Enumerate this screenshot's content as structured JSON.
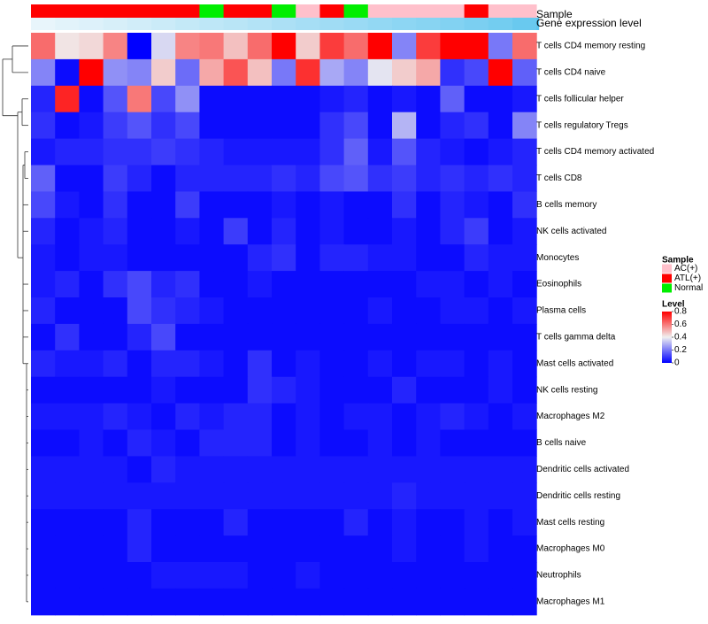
{
  "chart_data": {
    "type": "heatmap",
    "title": "",
    "annotation_tracks": [
      {
        "name": "Sample",
        "label": "Sample"
      },
      {
        "name": "Gene expression level",
        "label": "Gene expression level"
      }
    ],
    "sample_groups": [
      "ATL(+)",
      "ATL(+)",
      "ATL(+)",
      "ATL(+)",
      "ATL(+)",
      "ATL(+)",
      "ATL(+)",
      "Normal",
      "ATL(+)",
      "ATL(+)",
      "Normal",
      "AC(+)",
      "ATL(+)",
      "Normal",
      "AC(+)",
      "AC(+)",
      "AC(+)",
      "AC(+)",
      "ATL(+)",
      "AC(+)",
      "AC(+)"
    ],
    "expression_level": [
      0.02,
      0.06,
      0.1,
      0.14,
      0.18,
      0.22,
      0.27,
      0.31,
      0.35,
      0.39,
      0.44,
      0.48,
      0.52,
      0.56,
      0.61,
      0.65,
      0.69,
      0.73,
      0.78,
      0.83,
      0.9
    ],
    "rows": [
      "T cells CD4 memory resting",
      "T cells CD4 naive",
      "T cells follicular helper",
      "T cells regulatory  Tregs",
      "T cells CD4 memory activated",
      "T cells CD8",
      "B cells memory",
      "NK cells activated",
      "Monocytes",
      "Eosinophils",
      "Plasma cells",
      "T cells gamma delta",
      "Mast cells activated",
      "NK cells resting",
      "Macrophages M2",
      "B cells naive",
      "Dendritic cells activated",
      "Dendritic cells resting",
      "Mast cells resting",
      "Macrophages M0",
      "Neutrophils",
      "Macrophages M1"
    ],
    "values": [
      [
        0.62,
        0.42,
        0.44,
        0.58,
        0.0,
        0.36,
        0.58,
        0.6,
        0.48,
        0.62,
        0.8,
        0.46,
        0.7,
        0.62,
        0.82,
        0.22,
        0.7,
        0.8,
        0.82,
        0.2,
        0.62
      ],
      [
        0.22,
        0.02,
        0.8,
        0.24,
        0.22,
        0.46,
        0.18,
        0.52,
        0.66,
        0.48,
        0.2,
        0.72,
        0.28,
        0.22,
        0.38,
        0.46,
        0.52,
        0.08,
        0.12,
        0.8,
        0.16
      ],
      [
        0.06,
        0.74,
        0.02,
        0.14,
        0.6,
        0.12,
        0.24,
        0.02,
        0.02,
        0.02,
        0.02,
        0.02,
        0.04,
        0.06,
        0.02,
        0.04,
        0.02,
        0.16,
        0.02,
        0.02,
        0.04
      ],
      [
        0.08,
        0.02,
        0.04,
        0.1,
        0.14,
        0.08,
        0.12,
        0.02,
        0.02,
        0.02,
        0.02,
        0.02,
        0.08,
        0.12,
        0.02,
        0.3,
        0.02,
        0.06,
        0.08,
        0.02,
        0.22
      ],
      [
        0.04,
        0.06,
        0.06,
        0.08,
        0.08,
        0.1,
        0.08,
        0.06,
        0.04,
        0.04,
        0.04,
        0.04,
        0.08,
        0.16,
        0.04,
        0.14,
        0.06,
        0.04,
        0.02,
        0.04,
        0.06
      ],
      [
        0.16,
        0.02,
        0.02,
        0.1,
        0.06,
        0.02,
        0.06,
        0.06,
        0.06,
        0.06,
        0.08,
        0.06,
        0.12,
        0.14,
        0.08,
        0.1,
        0.06,
        0.08,
        0.06,
        0.08,
        0.06
      ],
      [
        0.12,
        0.04,
        0.02,
        0.08,
        0.02,
        0.02,
        0.1,
        0.02,
        0.02,
        0.02,
        0.04,
        0.02,
        0.04,
        0.02,
        0.02,
        0.08,
        0.02,
        0.06,
        0.04,
        0.02,
        0.08
      ],
      [
        0.06,
        0.02,
        0.04,
        0.06,
        0.02,
        0.02,
        0.04,
        0.02,
        0.1,
        0.02,
        0.06,
        0.02,
        0.04,
        0.02,
        0.02,
        0.04,
        0.02,
        0.06,
        0.1,
        0.02,
        0.04
      ],
      [
        0.04,
        0.02,
        0.04,
        0.04,
        0.02,
        0.02,
        0.02,
        0.02,
        0.02,
        0.06,
        0.08,
        0.02,
        0.06,
        0.06,
        0.04,
        0.04,
        0.02,
        0.02,
        0.06,
        0.04,
        0.04
      ],
      [
        0.04,
        0.06,
        0.02,
        0.08,
        0.12,
        0.06,
        0.08,
        0.02,
        0.02,
        0.04,
        0.02,
        0.02,
        0.02,
        0.02,
        0.02,
        0.02,
        0.04,
        0.04,
        0.02,
        0.04,
        0.02
      ],
      [
        0.06,
        0.02,
        0.02,
        0.02,
        0.12,
        0.08,
        0.06,
        0.04,
        0.02,
        0.02,
        0.02,
        0.02,
        0.02,
        0.02,
        0.04,
        0.02,
        0.02,
        0.04,
        0.04,
        0.02,
        0.04
      ],
      [
        0.02,
        0.08,
        0.02,
        0.02,
        0.06,
        0.12,
        0.02,
        0.02,
        0.02,
        0.02,
        0.02,
        0.02,
        0.02,
        0.02,
        0.02,
        0.02,
        0.02,
        0.02,
        0.02,
        0.02,
        0.02
      ],
      [
        0.06,
        0.04,
        0.04,
        0.06,
        0.02,
        0.06,
        0.06,
        0.04,
        0.02,
        0.08,
        0.02,
        0.04,
        0.02,
        0.02,
        0.04,
        0.02,
        0.04,
        0.04,
        0.02,
        0.04,
        0.02
      ],
      [
        0.02,
        0.02,
        0.02,
        0.02,
        0.02,
        0.04,
        0.02,
        0.02,
        0.02,
        0.08,
        0.06,
        0.04,
        0.02,
        0.02,
        0.02,
        0.06,
        0.02,
        0.02,
        0.02,
        0.04,
        0.02
      ],
      [
        0.04,
        0.04,
        0.04,
        0.06,
        0.04,
        0.02,
        0.06,
        0.04,
        0.06,
        0.06,
        0.02,
        0.04,
        0.02,
        0.04,
        0.04,
        0.02,
        0.04,
        0.06,
        0.04,
        0.02,
        0.04
      ],
      [
        0.02,
        0.02,
        0.04,
        0.02,
        0.06,
        0.04,
        0.02,
        0.06,
        0.06,
        0.06,
        0.02,
        0.04,
        0.02,
        0.02,
        0.04,
        0.02,
        0.04,
        0.02,
        0.02,
        0.02,
        0.02
      ],
      [
        0.04,
        0.04,
        0.04,
        0.04,
        0.02,
        0.06,
        0.04,
        0.04,
        0.04,
        0.04,
        0.04,
        0.04,
        0.04,
        0.04,
        0.04,
        0.04,
        0.04,
        0.04,
        0.04,
        0.04,
        0.04
      ],
      [
        0.04,
        0.04,
        0.04,
        0.04,
        0.04,
        0.04,
        0.04,
        0.04,
        0.04,
        0.04,
        0.04,
        0.04,
        0.04,
        0.04,
        0.04,
        0.06,
        0.04,
        0.04,
        0.04,
        0.04,
        0.04
      ],
      [
        0.02,
        0.02,
        0.02,
        0.02,
        0.06,
        0.02,
        0.02,
        0.02,
        0.06,
        0.02,
        0.02,
        0.02,
        0.02,
        0.06,
        0.02,
        0.04,
        0.02,
        0.02,
        0.04,
        0.02,
        0.04
      ],
      [
        0.02,
        0.02,
        0.02,
        0.02,
        0.06,
        0.02,
        0.02,
        0.02,
        0.02,
        0.02,
        0.02,
        0.02,
        0.02,
        0.02,
        0.02,
        0.04,
        0.02,
        0.02,
        0.04,
        0.02,
        0.02
      ],
      [
        0.02,
        0.02,
        0.02,
        0.02,
        0.02,
        0.04,
        0.04,
        0.04,
        0.04,
        0.02,
        0.02,
        0.04,
        0.02,
        0.02,
        0.02,
        0.02,
        0.02,
        0.02,
        0.02,
        0.02,
        0.02
      ],
      [
        0.02,
        0.02,
        0.02,
        0.02,
        0.02,
        0.02,
        0.02,
        0.02,
        0.02,
        0.02,
        0.02,
        0.02,
        0.02,
        0.02,
        0.02,
        0.02,
        0.02,
        0.02,
        0.02,
        0.02,
        0.02
      ]
    ],
    "value_range": [
      0,
      0.8
    ],
    "legend": {
      "sample_title": "Sample",
      "sample_entries": [
        {
          "label": "AC(+)",
          "color": "#ffc0cb"
        },
        {
          "label": "ATL(+)",
          "color": "#ff0000"
        },
        {
          "label": "Normal",
          "color": "#00ee00"
        }
      ],
      "level_title": "Level",
      "level_ticks": [
        "0.8",
        "0.6",
        "0.4",
        "0.2",
        "0"
      ]
    },
    "colors": {
      "low": "#0000ff",
      "mid": "#f0f0f0",
      "high": "#ff0000",
      "expr_low": "#ebf6fb",
      "expr_high": "#5bc4ee"
    }
  }
}
